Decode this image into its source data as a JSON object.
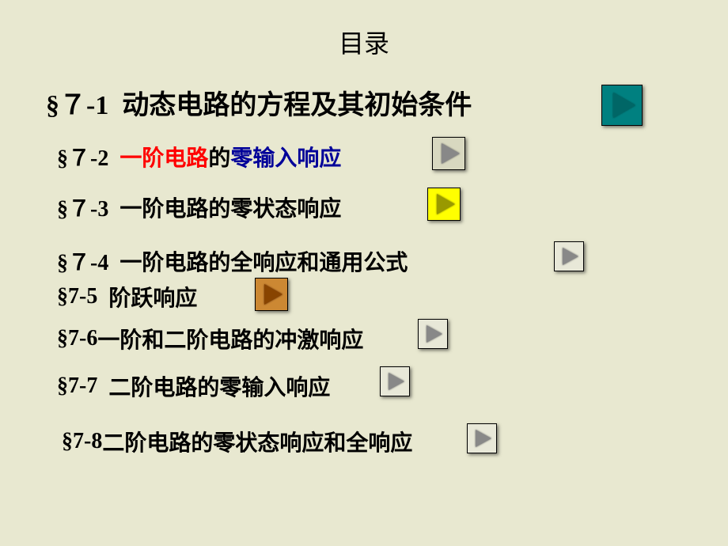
{
  "title": "目录",
  "items": [
    {
      "prefix": "§７-1",
      "text": "动态电路的方程及其初始条件",
      "button": {
        "bg": "btn-teal",
        "tri_size": "tri-large",
        "tri_color": "tri-teal"
      }
    },
    {
      "prefix": "§７-2",
      "parts": [
        {
          "text": "一阶电路",
          "class": "red-text"
        },
        {
          "text": "的",
          "class": ""
        },
        {
          "text": "零输入响应",
          "class": "blue-text"
        }
      ],
      "button": {
        "bg": "btn-tan",
        "tri_size": "tri-med",
        "tri_color": "tri-gray"
      }
    },
    {
      "prefix": "§７-3",
      "text": "一阶电路的零状态响应",
      "button": {
        "bg": "btn-yellow",
        "tri_size": "tri-med",
        "tri_color": "tri-olive"
      }
    },
    {
      "prefix": "§７-4",
      "text": "一阶电路的全响应和通用公式",
      "button": {
        "bg": "btn-light",
        "tri_size": "tri-small",
        "tri_color": "tri-gray"
      }
    },
    {
      "prefix": "§7-5",
      "text": "阶跃响应",
      "button": {
        "bg": "btn-orange",
        "tri_size": "tri-med",
        "tri_color": "tri-brown"
      }
    },
    {
      "prefix": "§7-6",
      "text": "一阶和二阶电路的冲激响应",
      "button": {
        "bg": "btn-light",
        "tri_size": "tri-small",
        "tri_color": "tri-gray"
      }
    },
    {
      "prefix": "§7-7",
      "text": "二阶电路的零输入响应",
      "button": {
        "bg": "btn-light",
        "tri_size": "tri-small",
        "tri_color": "tri-gray"
      }
    },
    {
      "prefix": "§7-8",
      "text": "二阶电路的零状态响应和全响应",
      "button": {
        "bg": "btn-light",
        "tri_size": "tri-small",
        "tri_color": "tri-gray"
      }
    }
  ],
  "colors": {
    "background": "#e8e8d0",
    "text": "#000000",
    "red": "#ff0000",
    "blue": "#000099",
    "teal_bg": "#008080",
    "tan_bg": "#d8d8c0",
    "yellow_bg": "#ffff00",
    "orange_bg": "#cc8833",
    "light_bg": "#e8e8d8"
  }
}
